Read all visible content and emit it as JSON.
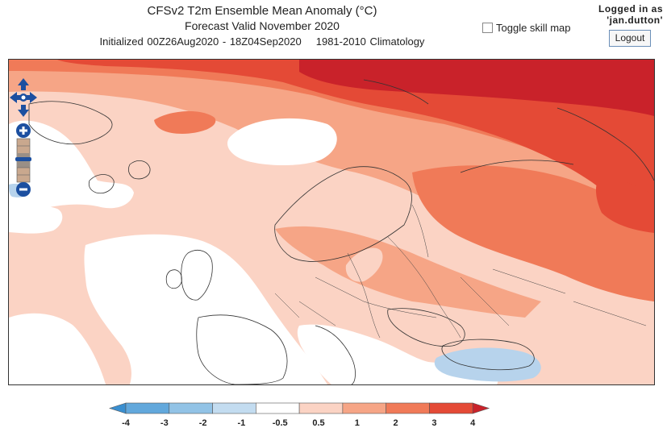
{
  "header": {
    "title": "CFSv2 T2m Ensemble Mean Anomaly (°C)",
    "valid": "Forecast Valid November 2020",
    "initialized": "Initialized 00Z26Aug2020 - 18Z04Sep2020",
    "climatology": "1981-2010 Climatology"
  },
  "skill_toggle": {
    "label": "Toggle skill map",
    "checked": false
  },
  "user": {
    "line1": "Logged in as",
    "line2": "'jan.dutton'",
    "logout_label": "Logout"
  },
  "map_controls": {
    "pan_icon": "pan-arrows-icon",
    "zoom_in_icon": "zoom-in-icon",
    "zoom_out_icon": "zoom-out-icon"
  },
  "legend": {
    "ticks": [
      "-4",
      "-3",
      "-2",
      "-1",
      "-0.5",
      "0.5",
      "1",
      "2",
      "3",
      "4"
    ],
    "colors": [
      "#3a8fd0",
      "#62a8dc",
      "#92c3e6",
      "#c3dcf0",
      "#ffffff",
      "#fbd3c4",
      "#f6a586",
      "#f07a58",
      "#e44a36",
      "#c9222a"
    ]
  },
  "map": {
    "anomaly_colors": {
      "light": "#fbd3c4",
      "medium": "#f6a586",
      "strong": "#f07a58",
      "very_strong": "#e44a36",
      "extreme": "#c9222a",
      "cool": "#b7d3ec",
      "neutral": "#ffffff"
    }
  }
}
